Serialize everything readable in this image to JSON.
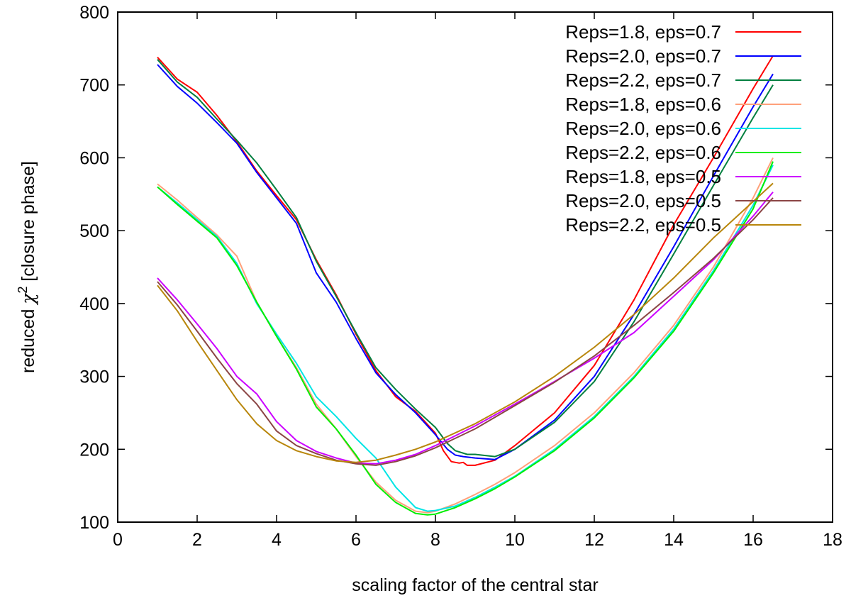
{
  "chart_data": {
    "type": "line",
    "title": "",
    "xlabel": "scaling factor of the central star",
    "ylabel_prefix": "reduced ",
    "ylabel_symbol": "χ",
    "ylabel_superscript": "2",
    "ylabel_suffix": " [closure phase]",
    "xlim": [
      0,
      18
    ],
    "ylim": [
      100,
      800
    ],
    "xticks": [
      0,
      2,
      4,
      6,
      8,
      10,
      12,
      14,
      16,
      18
    ],
    "yticks": [
      100,
      200,
      300,
      400,
      500,
      600,
      700,
      800
    ],
    "grid": false,
    "legend_position": "top-right",
    "series": [
      {
        "name": "Reps=1.8, eps=0.7",
        "color": "#ff0000",
        "points": [
          [
            1,
            738
          ],
          [
            1.5,
            708
          ],
          [
            2,
            690
          ],
          [
            2.5,
            658
          ],
          [
            3,
            622
          ],
          [
            3.5,
            582
          ],
          [
            4,
            548
          ],
          [
            4.5,
            515
          ],
          [
            5,
            460
          ],
          [
            5.5,
            412
          ],
          [
            6,
            358
          ],
          [
            6.5,
            308
          ],
          [
            7,
            272
          ],
          [
            7.5,
            252
          ],
          [
            8,
            222
          ],
          [
            8.2,
            198
          ],
          [
            8.4,
            183
          ],
          [
            8.6,
            181
          ],
          [
            8.7,
            182
          ],
          [
            8.8,
            178
          ],
          [
            9,
            178
          ],
          [
            9.5,
            185
          ],
          [
            10,
            205
          ],
          [
            11,
            250
          ],
          [
            12,
            315
          ],
          [
            13,
            405
          ],
          [
            14,
            508
          ],
          [
            15,
            600
          ],
          [
            16,
            695
          ],
          [
            16.5,
            740
          ]
        ]
      },
      {
        "name": "Reps=2.0, eps=0.7",
        "color": "#0000ff",
        "points": [
          [
            1,
            728
          ],
          [
            1.5,
            698
          ],
          [
            2,
            675
          ],
          [
            2.5,
            648
          ],
          [
            3,
            620
          ],
          [
            3.5,
            580
          ],
          [
            4,
            545
          ],
          [
            4.5,
            510
          ],
          [
            5,
            442
          ],
          [
            5.5,
            402
          ],
          [
            6,
            352
          ],
          [
            6.5,
            305
          ],
          [
            7,
            275
          ],
          [
            7.5,
            250
          ],
          [
            8,
            220
          ],
          [
            8.3,
            200
          ],
          [
            8.5,
            192
          ],
          [
            8.7,
            190
          ],
          [
            9,
            188
          ],
          [
            9.5,
            186
          ],
          [
            10,
            200
          ],
          [
            11,
            240
          ],
          [
            12,
            300
          ],
          [
            13,
            385
          ],
          [
            14,
            478
          ],
          [
            15,
            575
          ],
          [
            16,
            670
          ],
          [
            16.5,
            715
          ]
        ]
      },
      {
        "name": "Reps=2.2, eps=0.7",
        "color": "#007f3f",
        "points": [
          [
            1,
            735
          ],
          [
            1.5,
            704
          ],
          [
            2,
            683
          ],
          [
            2.5,
            653
          ],
          [
            3,
            624
          ],
          [
            3.5,
            593
          ],
          [
            4,
            556
          ],
          [
            4.5,
            518
          ],
          [
            5,
            458
          ],
          [
            5.5,
            410
          ],
          [
            6,
            360
          ],
          [
            6.5,
            312
          ],
          [
            7,
            282
          ],
          [
            7.5,
            255
          ],
          [
            8,
            230
          ],
          [
            8.3,
            208
          ],
          [
            8.5,
            198
          ],
          [
            8.8,
            193
          ],
          [
            9,
            193
          ],
          [
            9.5,
            190
          ],
          [
            10,
            200
          ],
          [
            11,
            237
          ],
          [
            12,
            293
          ],
          [
            13,
            375
          ],
          [
            14,
            468
          ],
          [
            15,
            562
          ],
          [
            16,
            655
          ],
          [
            16.5,
            700
          ]
        ]
      },
      {
        "name": "Reps=1.8, eps=0.6",
        "color": "#ffa07a",
        "points": [
          [
            1,
            564
          ],
          [
            1.5,
            542
          ],
          [
            2,
            518
          ],
          [
            2.5,
            494
          ],
          [
            3,
            465
          ],
          [
            3.5,
            402
          ],
          [
            4,
            355
          ],
          [
            4.5,
            312
          ],
          [
            5,
            262
          ],
          [
            5.5,
            228
          ],
          [
            6,
            190
          ],
          [
            6.5,
            155
          ],
          [
            7,
            130
          ],
          [
            7.5,
            115
          ],
          [
            7.8,
            113
          ],
          [
            8,
            115
          ],
          [
            8.5,
            125
          ],
          [
            9,
            138
          ],
          [
            9.5,
            152
          ],
          [
            10,
            168
          ],
          [
            11,
            205
          ],
          [
            12,
            250
          ],
          [
            13,
            305
          ],
          [
            14,
            370
          ],
          [
            15,
            450
          ],
          [
            16,
            545
          ],
          [
            16.5,
            600
          ]
        ]
      },
      {
        "name": "Reps=2.0, eps=0.6",
        "color": "#00e5e5",
        "points": [
          [
            1,
            560
          ],
          [
            1.5,
            538
          ],
          [
            2,
            515
          ],
          [
            2.5,
            492
          ],
          [
            3,
            455
          ],
          [
            3.5,
            400
          ],
          [
            4,
            358
          ],
          [
            4.5,
            318
          ],
          [
            5,
            272
          ],
          [
            5.5,
            245
          ],
          [
            6,
            215
          ],
          [
            6.5,
            188
          ],
          [
            7,
            148
          ],
          [
            7.5,
            120
          ],
          [
            7.8,
            115
          ],
          [
            8,
            116
          ],
          [
            8.5,
            122
          ],
          [
            9,
            134
          ],
          [
            9.5,
            148
          ],
          [
            10,
            163
          ],
          [
            11,
            200
          ],
          [
            12,
            245
          ],
          [
            13,
            300
          ],
          [
            14,
            365
          ],
          [
            15,
            445
          ],
          [
            16,
            535
          ],
          [
            16.5,
            590
          ]
        ]
      },
      {
        "name": "Reps=2.2, eps=0.6",
        "color": "#00ee00",
        "points": [
          [
            1,
            560
          ],
          [
            1.5,
            536
          ],
          [
            2,
            513
          ],
          [
            2.5,
            490
          ],
          [
            3,
            452
          ],
          [
            3.5,
            402
          ],
          [
            4,
            355
          ],
          [
            4.5,
            310
          ],
          [
            5,
            258
          ],
          [
            5.5,
            228
          ],
          [
            6,
            192
          ],
          [
            6.5,
            152
          ],
          [
            7,
            127
          ],
          [
            7.5,
            112
          ],
          [
            7.8,
            110
          ],
          [
            8,
            111
          ],
          [
            8.5,
            120
          ],
          [
            9,
            132
          ],
          [
            9.5,
            146
          ],
          [
            10,
            162
          ],
          [
            11,
            198
          ],
          [
            12,
            243
          ],
          [
            13,
            298
          ],
          [
            14,
            362
          ],
          [
            15,
            442
          ],
          [
            16,
            530
          ],
          [
            16.5,
            595
          ]
        ]
      },
      {
        "name": "Reps=1.8, eps=0.5",
        "color": "#cc00ff",
        "points": [
          [
            1,
            435
          ],
          [
            1.5,
            405
          ],
          [
            2,
            372
          ],
          [
            2.5,
            338
          ],
          [
            3,
            300
          ],
          [
            3.5,
            276
          ],
          [
            4,
            238
          ],
          [
            4.5,
            212
          ],
          [
            5,
            197
          ],
          [
            5.5,
            188
          ],
          [
            6,
            181
          ],
          [
            6.5,
            180
          ],
          [
            7,
            185
          ],
          [
            7.5,
            193
          ],
          [
            8,
            205
          ],
          [
            9,
            232
          ],
          [
            10,
            262
          ],
          [
            11,
            293
          ],
          [
            12,
            325
          ],
          [
            13,
            360
          ],
          [
            14,
            410
          ],
          [
            15,
            460
          ],
          [
            16,
            520
          ],
          [
            16.5,
            553
          ]
        ]
      },
      {
        "name": "Reps=2.0, eps=0.5",
        "color": "#8b4545",
        "points": [
          [
            1,
            430
          ],
          [
            1.5,
            398
          ],
          [
            2,
            362
          ],
          [
            2.5,
            325
          ],
          [
            3,
            290
          ],
          [
            3.5,
            262
          ],
          [
            4,
            225
          ],
          [
            4.5,
            205
          ],
          [
            5,
            194
          ],
          [
            5.5,
            185
          ],
          [
            6,
            180
          ],
          [
            6.5,
            178
          ],
          [
            7,
            183
          ],
          [
            7.5,
            191
          ],
          [
            8,
            202
          ],
          [
            9,
            228
          ],
          [
            10,
            260
          ],
          [
            11,
            292
          ],
          [
            12,
            328
          ],
          [
            13,
            370
          ],
          [
            14,
            415
          ],
          [
            15,
            462
          ],
          [
            16,
            515
          ],
          [
            16.5,
            545
          ]
        ]
      },
      {
        "name": "Reps=2.2, eps=0.5",
        "color": "#b8860b",
        "points": [
          [
            1,
            425
          ],
          [
            1.5,
            390
          ],
          [
            2,
            348
          ],
          [
            2.5,
            308
          ],
          [
            3,
            268
          ],
          [
            3.5,
            235
          ],
          [
            4,
            212
          ],
          [
            4.5,
            198
          ],
          [
            5,
            190
          ],
          [
            5.5,
            184
          ],
          [
            6,
            182
          ],
          [
            6.5,
            185
          ],
          [
            7,
            192
          ],
          [
            7.5,
            200
          ],
          [
            8,
            210
          ],
          [
            9,
            235
          ],
          [
            10,
            265
          ],
          [
            11,
            300
          ],
          [
            12,
            340
          ],
          [
            13,
            385
          ],
          [
            14,
            435
          ],
          [
            15,
            490
          ],
          [
            16,
            540
          ],
          [
            16.5,
            565
          ]
        ]
      }
    ]
  }
}
